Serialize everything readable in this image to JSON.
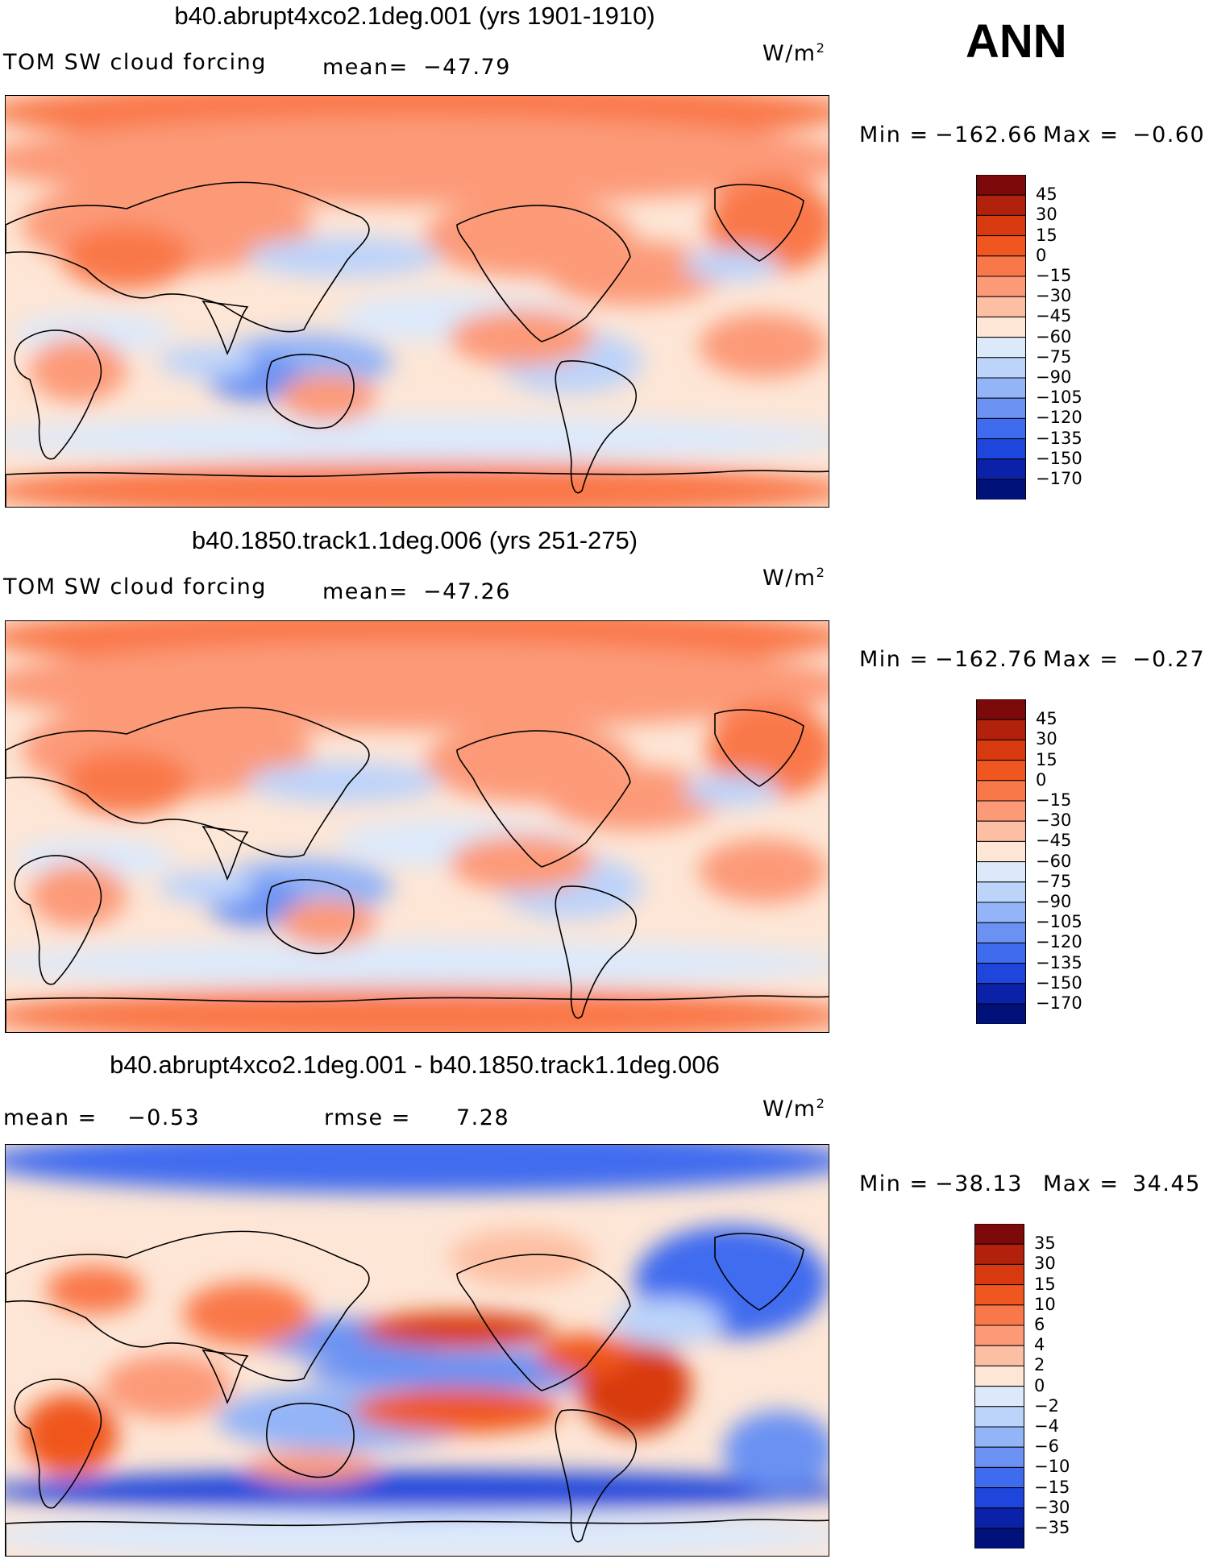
{
  "season": "ANN",
  "panels": [
    {
      "title": "b40.abrupt4xco2.1deg.001 (yrs 1901-1910)",
      "left_label": "TOM SW cloud forcing",
      "stat_label": "mean=",
      "stat_value": "-47.79",
      "units": "W/m",
      "units_sup": "2",
      "min_label": "Min  =",
      "min_value": "-162.66",
      "max_label": "Max  =",
      "max_value": "-0.60",
      "kind": "abs"
    },
    {
      "title": "b40.1850.track1.1deg.006 (yrs 251-275)",
      "left_label": "TOM SW cloud forcing",
      "stat_label": "mean=",
      "stat_value": "-47.26",
      "units": "W/m",
      "units_sup": "2",
      "min_label": "Min  =",
      "min_value": "-162.76",
      "max_label": "Max  =",
      "max_value": "-0.27",
      "kind": "abs"
    },
    {
      "title": "b40.abrupt4xco2.1deg.001 - b40.1850.track1.1deg.006",
      "left_label": "mean  =",
      "left_value": "-0.53",
      "stat_label": "rmse  =",
      "stat_value": "7.28",
      "units": "W/m",
      "units_sup": "2",
      "min_label": "Min  =",
      "min_value": "-38.13",
      "max_label": "Max  =",
      "max_value": "34.45",
      "kind": "diff"
    }
  ],
  "chart_data": [
    {
      "type": "heatmap",
      "title": "b40.abrupt4xco2.1deg.001 (yrs 1901-1910)",
      "variable": "TOM SW cloud forcing",
      "units": "W/m2",
      "mean": -47.79,
      "min": -162.66,
      "max": -0.6,
      "colorbar_levels": [
        "45",
        "30",
        "15",
        "0",
        "-15",
        "-30",
        "-45",
        "-60",
        "-75",
        "-90",
        "-105",
        "-120",
        "-135",
        "-150",
        "-170"
      ],
      "colorbar_colors": [
        "#7d0a0a",
        "#b2210b",
        "#d83a10",
        "#f0561f",
        "#f9784a",
        "#fc9a78",
        "#fdbfa3",
        "#fde6d6",
        "#dce9fb",
        "#bcd3fa",
        "#93b4f7",
        "#6b92f3",
        "#3f6cef",
        "#1e45dc",
        "#0b22a8",
        "#00127a"
      ]
    },
    {
      "type": "heatmap",
      "title": "b40.1850.track1.1deg.006 (yrs 251-275)",
      "variable": "TOM SW cloud forcing",
      "units": "W/m2",
      "mean": -47.26,
      "min": -162.76,
      "max": -0.27,
      "colorbar_levels": [
        "45",
        "30",
        "15",
        "0",
        "-15",
        "-30",
        "-45",
        "-60",
        "-75",
        "-90",
        "-105",
        "-120",
        "-135",
        "-150",
        "-170"
      ],
      "colorbar_colors": [
        "#7d0a0a",
        "#b2210b",
        "#d83a10",
        "#f0561f",
        "#f9784a",
        "#fc9a78",
        "#fdbfa3",
        "#fde6d6",
        "#dce9fb",
        "#bcd3fa",
        "#93b4f7",
        "#6b92f3",
        "#3f6cef",
        "#1e45dc",
        "#0b22a8",
        "#00127a"
      ]
    },
    {
      "type": "heatmap",
      "title": "b40.abrupt4xco2.1deg.001 - b40.1850.track1.1deg.006",
      "variable": "difference",
      "units": "W/m2",
      "mean": -0.53,
      "rmse": 7.28,
      "min": -38.13,
      "max": 34.45,
      "colorbar_levels": [
        "35",
        "30",
        "15",
        "10",
        "6",
        "4",
        "2",
        "0",
        "-2",
        "-4",
        "-6",
        "-10",
        "-15",
        "-30",
        "-35"
      ],
      "colorbar_colors": [
        "#7d0a0a",
        "#b2210b",
        "#d83a10",
        "#f0561f",
        "#f9784a",
        "#fc9a78",
        "#fdbfa3",
        "#fde6d6",
        "#dce9fb",
        "#bcd3fa",
        "#93b4f7",
        "#6b92f3",
        "#3f6cef",
        "#1e45dc",
        "#0b22a8",
        "#00127a"
      ]
    }
  ]
}
